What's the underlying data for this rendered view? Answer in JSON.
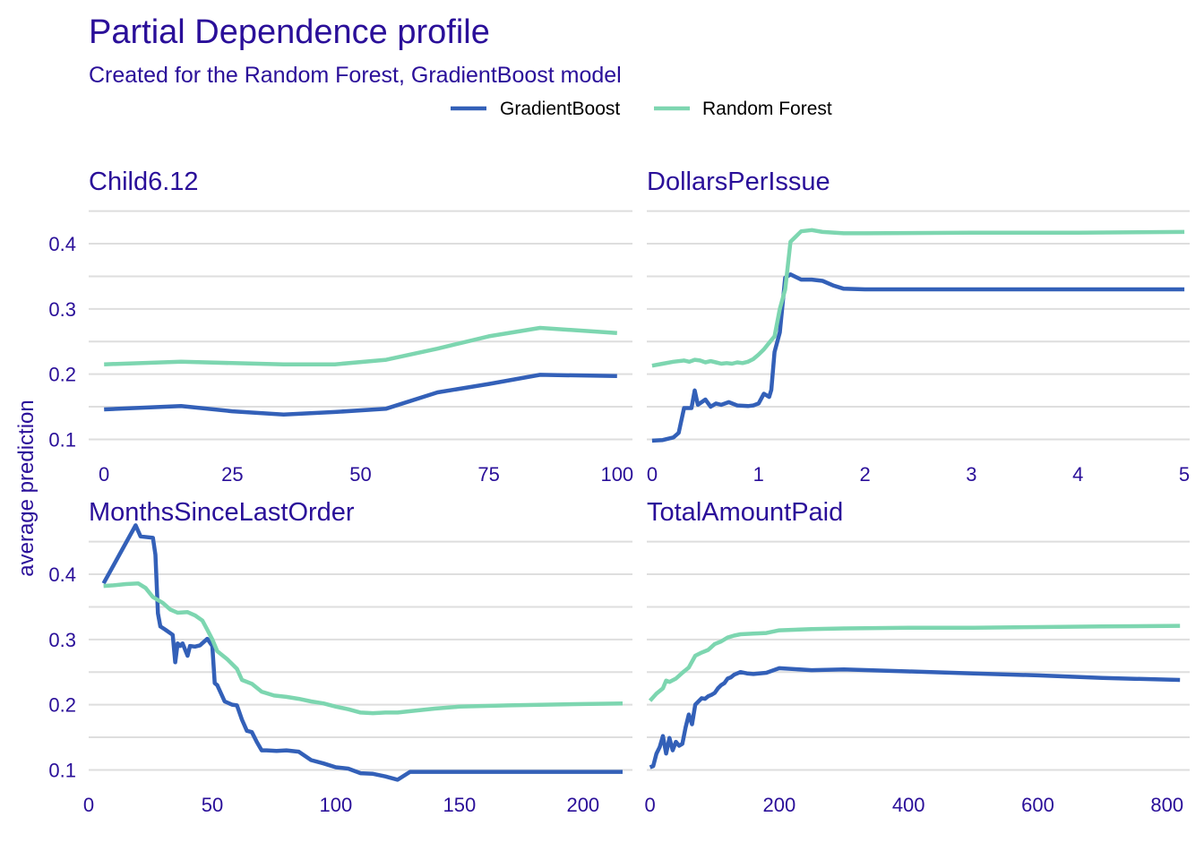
{
  "title": "Partial Dependence profile",
  "subtitle": "Created for the Random Forest, GradientBoost model",
  "ylabel": "average prediction",
  "colors": {
    "GradientBoost": "#3360b8",
    "Random Forest": "#7dd6b0",
    "text": "#2a0f99",
    "grid": "#dedede"
  },
  "legend": [
    {
      "name": "GradientBoost",
      "color": "#3360b8"
    },
    {
      "name": "Random Forest",
      "color": "#7dd6b0"
    }
  ],
  "chart_data": [
    {
      "type": "line",
      "title": "Child6.12",
      "xlim": [
        -3,
        103
      ],
      "ylim": [
        0.08,
        0.455
      ],
      "xticks": [
        0,
        25,
        50,
        75,
        100
      ],
      "yticks": [
        0.1,
        0.2,
        0.3,
        0.4
      ],
      "series": [
        {
          "name": "GradientBoost",
          "x": [
            0,
            15,
            25,
            35,
            45,
            55,
            65,
            75,
            85,
            100
          ],
          "y": [
            0.146,
            0.151,
            0.143,
            0.138,
            0.142,
            0.147,
            0.172,
            0.185,
            0.199,
            0.197
          ]
        },
        {
          "name": "Random Forest",
          "x": [
            0,
            15,
            25,
            35,
            45,
            55,
            65,
            75,
            85,
            100
          ],
          "y": [
            0.215,
            0.219,
            0.217,
            0.215,
            0.215,
            0.222,
            0.239,
            0.258,
            0.271,
            0.263
          ]
        }
      ]
    },
    {
      "type": "line",
      "title": "DollarsPerIssue",
      "xlim": [
        -0.05,
        5.05
      ],
      "ylim": [
        0.08,
        0.455
      ],
      "xticks": [
        0,
        1,
        2,
        3,
        4,
        5
      ],
      "yticks": [
        0.1,
        0.2,
        0.3,
        0.4
      ],
      "series": [
        {
          "name": "GradientBoost",
          "x": [
            0,
            0.1,
            0.2,
            0.25,
            0.3,
            0.33,
            0.37,
            0.4,
            0.43,
            0.5,
            0.55,
            0.6,
            0.65,
            0.72,
            0.8,
            0.9,
            0.95,
            1.0,
            1.05,
            1.1,
            1.12,
            1.15,
            1.2,
            1.25,
            1.3,
            1.4,
            1.5,
            1.6,
            1.7,
            1.8,
            2.0,
            3.0,
            4.0,
            5.0
          ],
          "y": [
            0.098,
            0.099,
            0.103,
            0.11,
            0.148,
            0.148,
            0.148,
            0.175,
            0.153,
            0.161,
            0.15,
            0.155,
            0.153,
            0.157,
            0.152,
            0.151,
            0.152,
            0.155,
            0.17,
            0.165,
            0.176,
            0.234,
            0.264,
            0.348,
            0.353,
            0.345,
            0.345,
            0.343,
            0.336,
            0.331,
            0.33,
            0.33,
            0.33,
            0.33
          ]
        },
        {
          "name": "Random Forest",
          "x": [
            0,
            0.1,
            0.2,
            0.3,
            0.35,
            0.4,
            0.45,
            0.5,
            0.55,
            0.6,
            0.65,
            0.7,
            0.75,
            0.8,
            0.85,
            0.9,
            0.95,
            1.0,
            1.05,
            1.1,
            1.15,
            1.2,
            1.25,
            1.3,
            1.4,
            1.5,
            1.6,
            1.8,
            2.0,
            3.0,
            4.0,
            5.0
          ],
          "y": [
            0.213,
            0.216,
            0.219,
            0.221,
            0.219,
            0.222,
            0.221,
            0.218,
            0.22,
            0.218,
            0.216,
            0.217,
            0.216,
            0.218,
            0.217,
            0.219,
            0.223,
            0.23,
            0.238,
            0.248,
            0.258,
            0.3,
            0.33,
            0.403,
            0.419,
            0.421,
            0.418,
            0.416,
            0.416,
            0.417,
            0.417,
            0.418
          ]
        }
      ]
    },
    {
      "type": "line",
      "title": "MonthsSinceLastOrder",
      "xlim": [
        0,
        220
      ],
      "ylim": [
        0.08,
        0.455
      ],
      "xticks": [
        0,
        50,
        100,
        150,
        200
      ],
      "yticks": [
        0.1,
        0.2,
        0.3,
        0.4
      ],
      "series": [
        {
          "name": "GradientBoost",
          "x": [
            6,
            19,
            21,
            26,
            27,
            28,
            29,
            31,
            34,
            35,
            36,
            37,
            38,
            40,
            41,
            43,
            45,
            48,
            50,
            51,
            52,
            55,
            58,
            60,
            62,
            64,
            66,
            68,
            70,
            72,
            76,
            80,
            85,
            90,
            95,
            100,
            105,
            110,
            115,
            120,
            125,
            130,
            140,
            150,
            180,
            200,
            216
          ],
          "y": [
            0.386,
            0.475,
            0.458,
            0.456,
            0.43,
            0.34,
            0.32,
            0.315,
            0.307,
            0.265,
            0.294,
            0.29,
            0.294,
            0.275,
            0.29,
            0.289,
            0.291,
            0.301,
            0.29,
            0.233,
            0.23,
            0.205,
            0.2,
            0.199,
            0.177,
            0.16,
            0.158,
            0.143,
            0.13,
            0.13,
            0.129,
            0.13,
            0.128,
            0.115,
            0.11,
            0.104,
            0.102,
            0.095,
            0.094,
            0.09,
            0.085,
            0.097,
            0.097,
            0.097,
            0.097,
            0.097,
            0.097
          ]
        },
        {
          "name": "Random Forest",
          "x": [
            6,
            10,
            15,
            20,
            23,
            26,
            30,
            33,
            36,
            40,
            43,
            46,
            48,
            50,
            52,
            56,
            60,
            62,
            66,
            70,
            75,
            80,
            85,
            90,
            95,
            100,
            105,
            110,
            115,
            120,
            125,
            130,
            140,
            150,
            170,
            200,
            216
          ],
          "y": [
            0.382,
            0.383,
            0.385,
            0.386,
            0.379,
            0.365,
            0.356,
            0.346,
            0.341,
            0.342,
            0.337,
            0.329,
            0.315,
            0.3,
            0.282,
            0.27,
            0.255,
            0.238,
            0.232,
            0.22,
            0.214,
            0.212,
            0.209,
            0.205,
            0.202,
            0.197,
            0.193,
            0.188,
            0.187,
            0.188,
            0.188,
            0.19,
            0.194,
            0.197,
            0.199,
            0.201,
            0.202
          ]
        }
      ]
    },
    {
      "type": "line",
      "title": "TotalAmountPaid",
      "xlim": [
        -5,
        835
      ],
      "ylim": [
        0.08,
        0.455
      ],
      "xticks": [
        0,
        200,
        400,
        600,
        800
      ],
      "yticks": [
        0.1,
        0.2,
        0.3,
        0.4
      ],
      "series": [
        {
          "name": "GradientBoost",
          "x": [
            0,
            5,
            10,
            15,
            20,
            25,
            30,
            35,
            40,
            45,
            50,
            55,
            60,
            65,
            70,
            75,
            80,
            85,
            90,
            95,
            100,
            105,
            110,
            115,
            120,
            125,
            130,
            140,
            150,
            160,
            180,
            200,
            250,
            300,
            400,
            500,
            600,
            700,
            820
          ],
          "y": [
            0.104,
            0.106,
            0.125,
            0.135,
            0.152,
            0.125,
            0.149,
            0.13,
            0.143,
            0.137,
            0.14,
            0.165,
            0.185,
            0.17,
            0.2,
            0.205,
            0.21,
            0.209,
            0.213,
            0.215,
            0.218,
            0.225,
            0.23,
            0.233,
            0.24,
            0.242,
            0.246,
            0.25,
            0.248,
            0.247,
            0.249,
            0.256,
            0.253,
            0.254,
            0.251,
            0.248,
            0.245,
            0.241,
            0.238
          ]
        },
        {
          "name": "Random Forest",
          "x": [
            0,
            10,
            20,
            25,
            30,
            40,
            50,
            60,
            70,
            80,
            90,
            100,
            110,
            120,
            130,
            140,
            160,
            180,
            200,
            250,
            300,
            400,
            500,
            600,
            700,
            820
          ],
          "y": [
            0.206,
            0.217,
            0.225,
            0.237,
            0.235,
            0.24,
            0.249,
            0.257,
            0.275,
            0.28,
            0.284,
            0.293,
            0.297,
            0.303,
            0.306,
            0.308,
            0.309,
            0.31,
            0.314,
            0.316,
            0.317,
            0.318,
            0.318,
            0.319,
            0.32,
            0.321
          ]
        }
      ]
    }
  ]
}
